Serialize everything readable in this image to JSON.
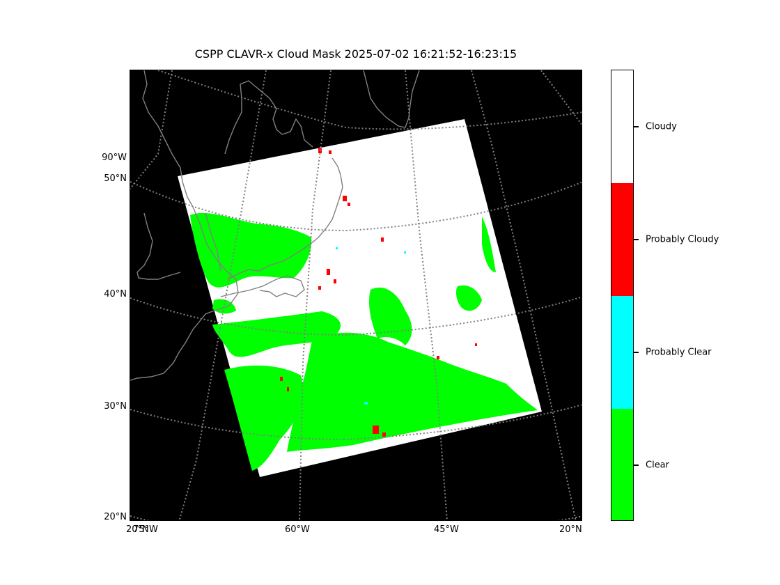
{
  "title": "CSPP CLAVR-x Cloud Mask 2025-07-02 16:21:52-16:23:15",
  "map": {
    "lat_labels": [
      "90°W",
      "50°N",
      "40°N",
      "30°N",
      "20°N"
    ],
    "lon_labels": [
      "20°N",
      "75°W",
      "60°W",
      "45°W",
      "20°N"
    ],
    "background_color": "#000000",
    "coastline_color": "#808080",
    "gridline_color": "#808080"
  },
  "colorbar": {
    "categories": [
      {
        "label": "Cloudy",
        "color": "#ffffff"
      },
      {
        "label": "Probably Cloudy",
        "color": "#ff0000"
      },
      {
        "label": "Probably Clear",
        "color": "#00ffff"
      },
      {
        "label": "Clear",
        "color": "#00ff00"
      }
    ]
  }
}
